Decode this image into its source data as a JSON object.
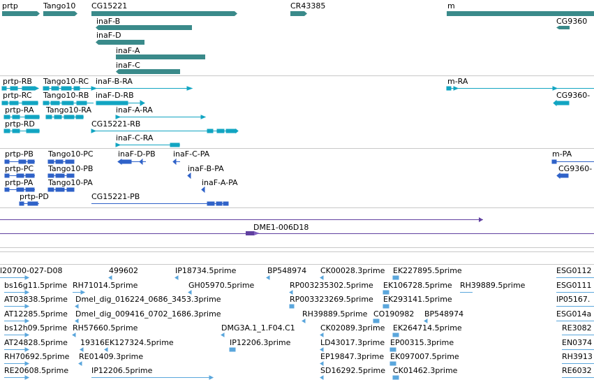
{
  "colors": {
    "gene": "#3a8a8a",
    "transcript": "#12a5c2",
    "protein": "#2f62c8",
    "clone": "#6040a0",
    "est": "#5aa6dc",
    "separator": "#c8c8c8"
  },
  "genes": [
    {
      "label": "prtp"
    },
    {
      "label": "Tango10"
    },
    {
      "label": "CG15221"
    },
    {
      "label": "CR43385"
    },
    {
      "label": "m"
    },
    {
      "label": "inaF-B"
    },
    {
      "label": "CG9360"
    },
    {
      "label": "inaF-D"
    },
    {
      "label": "inaF-A"
    },
    {
      "label": "inaF-C"
    }
  ],
  "transcripts": [
    {
      "label": "prtp-RB"
    },
    {
      "label": "Tango10-RC"
    },
    {
      "label": "inaF-B-RA"
    },
    {
      "label": "m-RA"
    },
    {
      "label": "prtp-RC"
    },
    {
      "label": "Tango10-RB"
    },
    {
      "label": "inaF-D-RB"
    },
    {
      "label": "CG9360-"
    },
    {
      "label": "prtp-RA"
    },
    {
      "label": "Tango10-RA"
    },
    {
      "label": "inaF-A-RA"
    },
    {
      "label": "prtp-RD"
    },
    {
      "label": "CG15221-RB"
    },
    {
      "label": "inaF-C-RA"
    }
  ],
  "proteins": [
    {
      "label": "prtp-PB"
    },
    {
      "label": "Tango10-PC"
    },
    {
      "label": "inaF-D-PB"
    },
    {
      "label": "inaF-C-PA"
    },
    {
      "label": "m-PA"
    },
    {
      "label": "prtp-PC"
    },
    {
      "label": "Tango10-PB"
    },
    {
      "label": "inaF-B-PA"
    },
    {
      "label": "CG9360-"
    },
    {
      "label": "prtp-PA"
    },
    {
      "label": "Tango10-PA"
    },
    {
      "label": "inaF-A-PA"
    },
    {
      "label": "prtp-PD"
    },
    {
      "label": "CG15221-PB"
    }
  ],
  "clones": [
    {
      "label": "DME1-006D18"
    }
  ],
  "ests": [
    {
      "label": "l20700-027-D08"
    },
    {
      "label": "499602"
    },
    {
      "label": "IP18734.5prime"
    },
    {
      "label": "BP548974"
    },
    {
      "label": "CK00028.3prime"
    },
    {
      "label": "EK227895.5prime"
    },
    {
      "label": "ESG0112"
    },
    {
      "label": "bs16g11.5prime"
    },
    {
      "label": "RH71014.5prime"
    },
    {
      "label": "GH05970.5prime"
    },
    {
      "label": "RP003235302.5prime"
    },
    {
      "label": "EK106728.5prime"
    },
    {
      "label": "RH39889.5prime"
    },
    {
      "label": "ESG0111"
    },
    {
      "label": "AT03838.5prime"
    },
    {
      "label": "Dmel_dig_016224_0686_3453.3prime"
    },
    {
      "label": "RP003323269.5prime"
    },
    {
      "label": "EK293141.5prime"
    },
    {
      "label": "IP05167."
    },
    {
      "label": "AT12285.5prime"
    },
    {
      "label": "Dmel_dig_009416_0702_1686.3prime"
    },
    {
      "label": "RH39889.5prime"
    },
    {
      "label": "CO190982"
    },
    {
      "label": "BP548974"
    },
    {
      "label": "ESG014a"
    },
    {
      "label": "bs12h09.5prime"
    },
    {
      "label": "RH57660.5prime"
    },
    {
      "label": "DMG3A.1_1.F04.C1"
    },
    {
      "label": "CK02089.3prime"
    },
    {
      "label": "EK264714.5prime"
    },
    {
      "label": "RE3082"
    },
    {
      "label": "AT24828.5prime"
    },
    {
      "label": "19316"
    },
    {
      "label": "EK127324.5prime"
    },
    {
      "label": "IP12206.3prime"
    },
    {
      "label": "LD43017.3prime"
    },
    {
      "label": "EP00315.3prime"
    },
    {
      "label": "EN0374"
    },
    {
      "label": "RH70692.5prime"
    },
    {
      "label": "RE01409.3prime"
    },
    {
      "label": "EP19847.3prime"
    },
    {
      "label": "EK097007.5prime"
    },
    {
      "label": "RH3913"
    },
    {
      "label": "RE20608.5prime"
    },
    {
      "label": "IP12206.5prime"
    },
    {
      "label": "SD16292.5prime"
    },
    {
      "label": "CK01462.3prime"
    },
    {
      "label": "RE6032"
    }
  ]
}
